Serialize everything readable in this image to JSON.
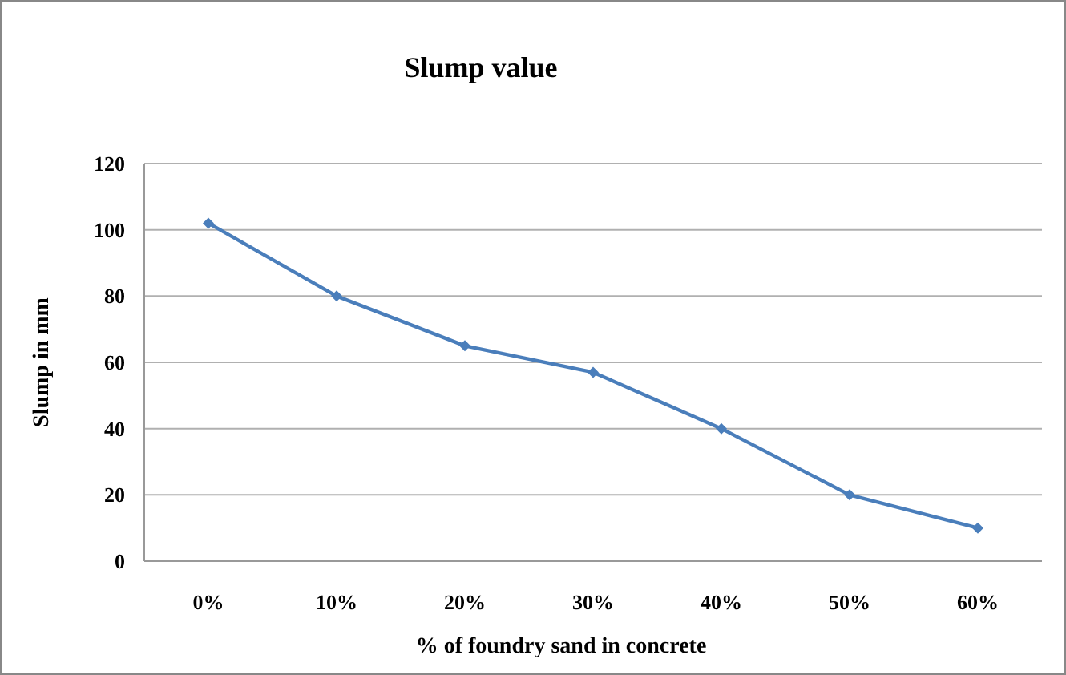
{
  "chart_data": {
    "type": "line",
    "title": "Slump value",
    "xlabel": "% of foundry sand in concrete",
    "ylabel": "Slump in mm",
    "categories": [
      "0%",
      "10%",
      "20%",
      "30%",
      "40%",
      "50%",
      "60%"
    ],
    "series": [
      {
        "color": "#4a7ebb",
        "values": [
          102,
          80,
          65,
          57,
          40,
          20,
          10
        ]
      }
    ],
    "ylim": [
      0,
      120
    ],
    "yticks": [
      0,
      20,
      40,
      60,
      80,
      100,
      120
    ],
    "grid": "y",
    "marker": "diamond"
  }
}
